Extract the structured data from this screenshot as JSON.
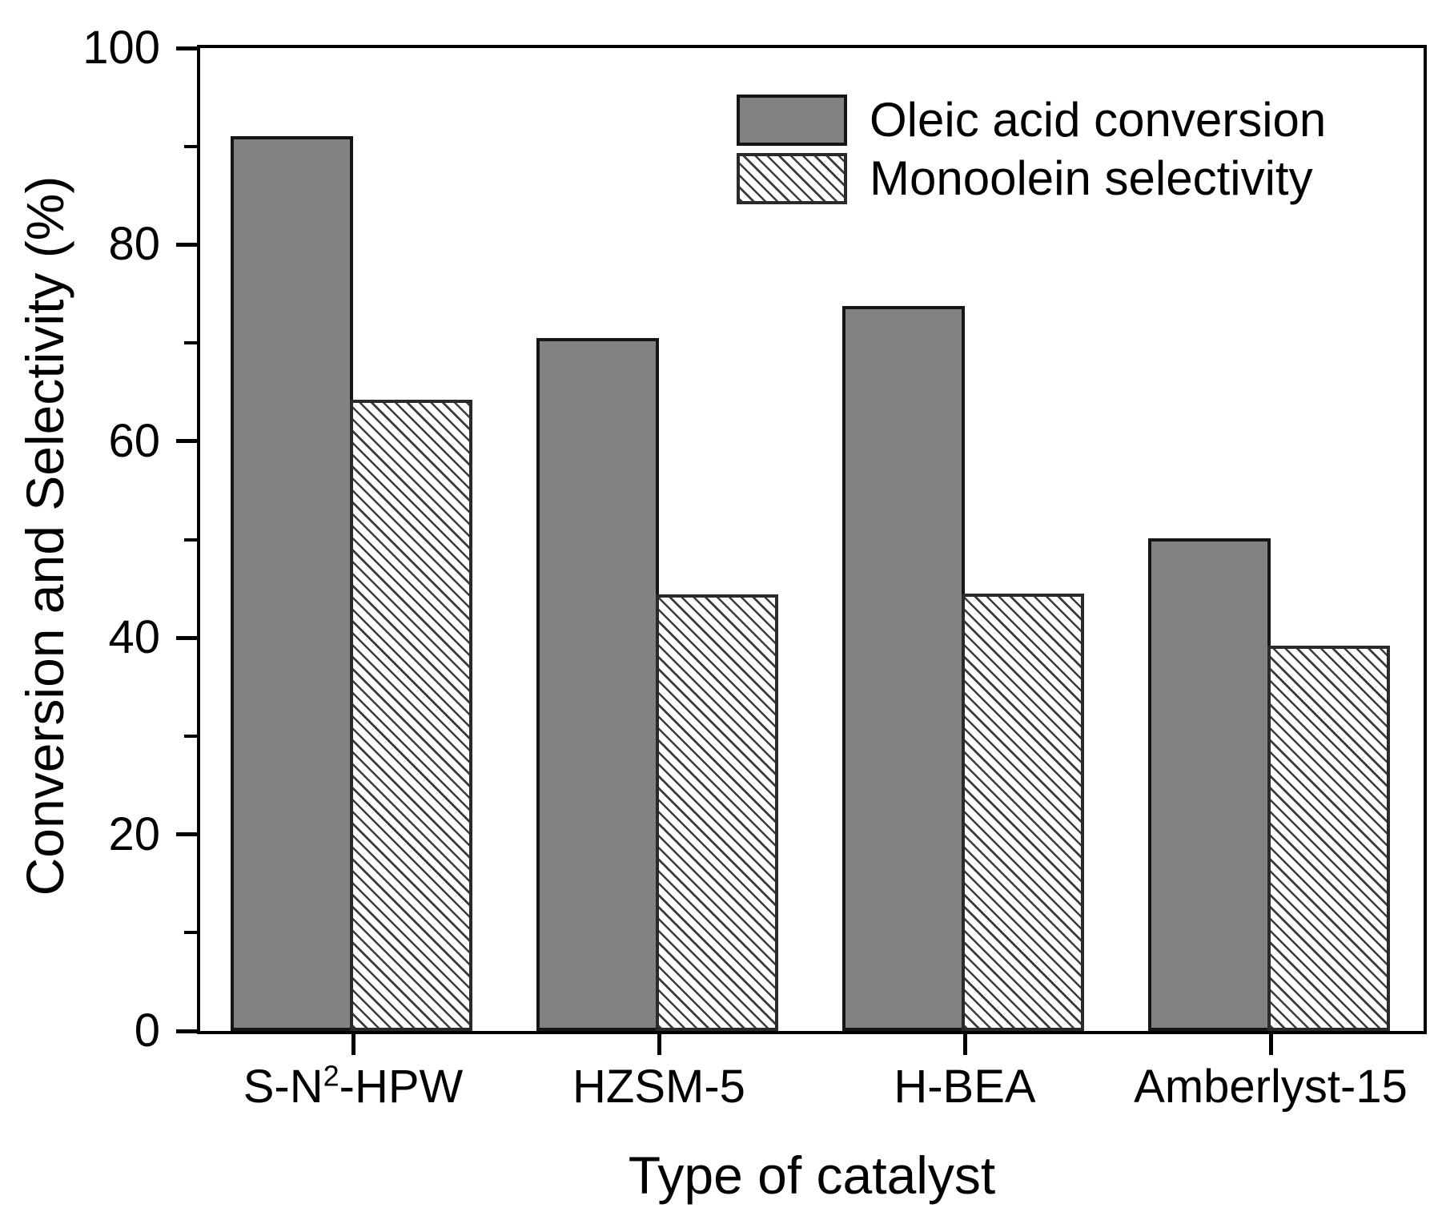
{
  "chart_data": {
    "type": "bar",
    "title": "",
    "xlabel": "Type of catalyst",
    "ylabel": "Conversion and Selectivity (%)",
    "categories": [
      "S-N²-HPW",
      "HZSM-5",
      "H-BEA",
      "Amberlyst-15"
    ],
    "series": [
      {
        "name": "Oleic acid conversion",
        "style": "solid-gray",
        "values": [
          91.0,
          70.5,
          73.8,
          50.1
        ]
      },
      {
        "name": "Monoolein selectivity",
        "style": "hatched-diagonal",
        "values": [
          64.2,
          44.4,
          44.5,
          39.2
        ]
      }
    ],
    "ylim": [
      0,
      100
    ],
    "yticks_major": [
      0,
      20,
      40,
      60,
      80,
      100
    ],
    "yticks_minor": [
      10,
      30,
      50,
      70,
      90
    ],
    "grid": "off",
    "legend_position": "inside-top-right",
    "colors": {
      "bar_fill_gray": "#828282",
      "bar_edge": "#151515",
      "hatch_line": "#3c3c3c",
      "axis": "#000000",
      "background": "#ffffff"
    }
  }
}
